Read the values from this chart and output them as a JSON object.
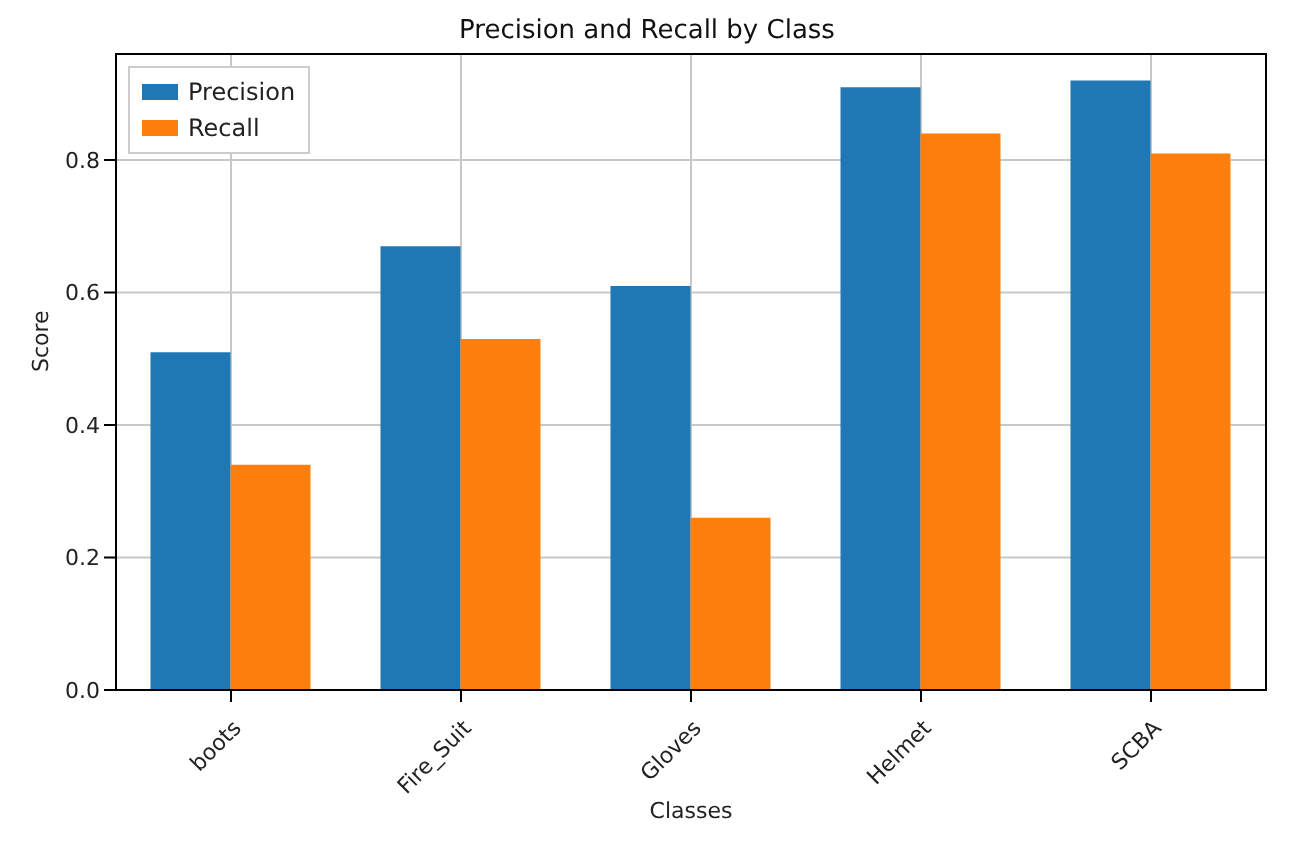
{
  "chart_data": {
    "type": "bar",
    "title": "Precision and Recall by Class",
    "xlabel": "Classes",
    "ylabel": "Score",
    "categories": [
      "boots",
      "Fire_Suit",
      "Gloves",
      "Helmet",
      "SCBA"
    ],
    "series": [
      {
        "name": "Precision",
        "color": "#1f77b4",
        "values": [
          0.51,
          0.67,
          0.61,
          0.91,
          0.92
        ]
      },
      {
        "name": "Recall",
        "color": "#ff7f0e",
        "values": [
          0.34,
          0.53,
          0.26,
          0.84,
          0.81
        ]
      }
    ],
    "ylim": [
      0,
      0.96
    ],
    "yticks": [
      {
        "value": 0,
        "label": "0.0"
      },
      {
        "value": 0.2,
        "label": "0.2"
      },
      {
        "value": 0.4,
        "label": "0.4"
      },
      {
        "value": 0.6,
        "label": "0.6"
      },
      {
        "value": 0.8,
        "label": "0.8"
      }
    ],
    "grid": true,
    "legend": "top left"
  }
}
